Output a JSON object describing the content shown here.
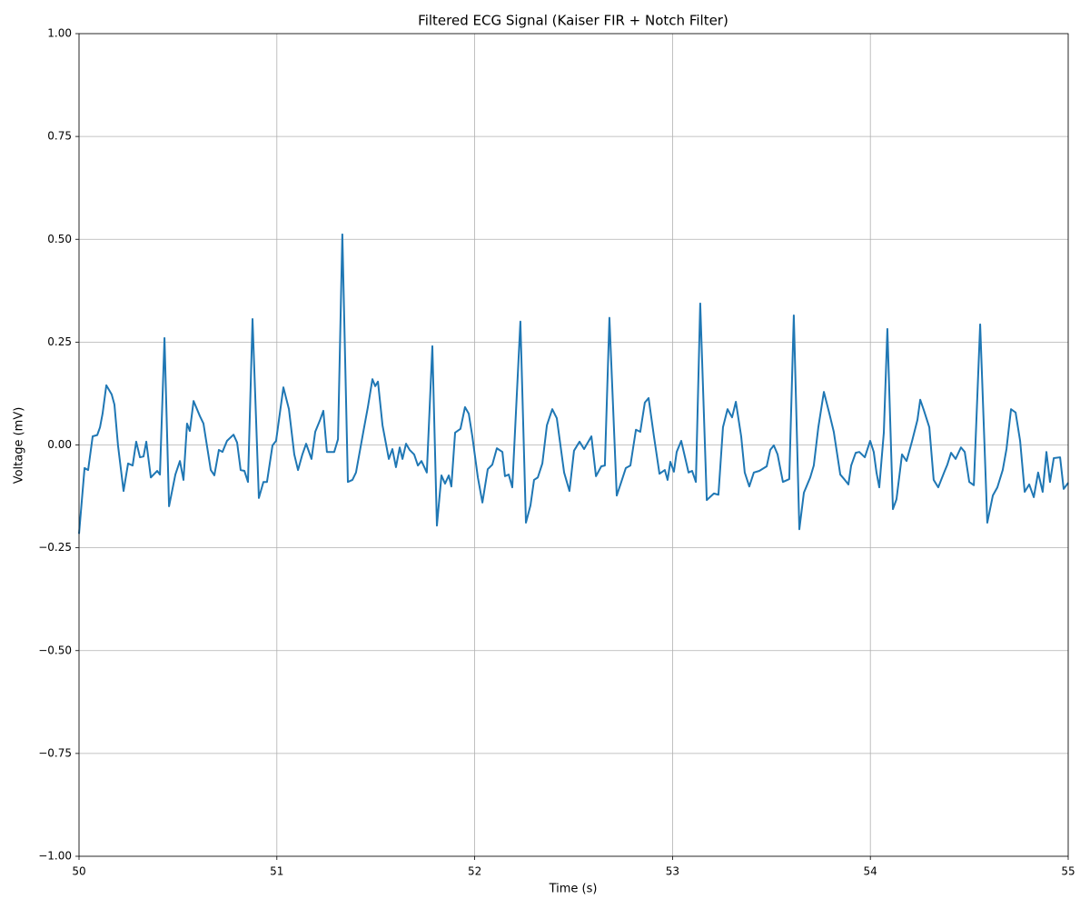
{
  "chart_data": {
    "type": "line",
    "title": "Filtered ECG Signal (Kaiser FIR + Notch Filter)",
    "x_label": "Time (s)",
    "y_label": "Voltage (mV)",
    "color": "#1f77b4",
    "grid": true,
    "xlim": [
      50,
      55
    ],
    "xticks": [
      50,
      51,
      52,
      53,
      54,
      55
    ],
    "ylim": [
      -1,
      1
    ],
    "yticks": [
      {
        "value": -1,
        "label": "−1.00"
      },
      {
        "value": -0.75,
        "label": "−0.75"
      },
      {
        "value": -0.5,
        "label": "−0.50"
      },
      {
        "value": -0.25,
        "label": "−0.25"
      },
      {
        "value": 0,
        "label": "0.00"
      },
      {
        "value": 0.25,
        "label": "0.25"
      },
      {
        "value": 0.5,
        "label": "0.50"
      },
      {
        "value": 0.75,
        "label": "0.75"
      },
      {
        "value": 1,
        "label": "1.00"
      }
    ],
    "x": [
      50.0,
      50.028,
      50.046,
      50.069,
      50.092,
      50.106,
      50.119,
      50.138,
      50.165,
      50.179,
      50.197,
      50.225,
      50.248,
      50.271,
      50.289,
      50.308,
      50.326,
      50.34,
      50.363,
      50.395,
      50.409,
      50.432,
      50.455,
      50.487,
      50.51,
      50.528,
      50.546,
      50.56,
      50.579,
      50.611,
      50.629,
      50.666,
      50.684,
      50.707,
      50.725,
      50.748,
      50.781,
      50.799,
      50.817,
      50.836,
      50.854,
      50.877,
      50.909,
      50.932,
      50.95,
      50.978,
      50.996,
      51.033,
      51.061,
      51.088,
      51.107,
      51.129,
      51.148,
      51.175,
      51.194,
      51.217,
      51.235,
      51.253,
      51.29,
      51.309,
      51.331,
      51.359,
      51.382,
      51.4,
      51.437,
      51.46,
      51.483,
      51.497,
      51.511,
      51.534,
      51.566,
      51.584,
      51.602,
      51.621,
      51.635,
      51.653,
      51.671,
      51.694,
      51.713,
      51.731,
      51.758,
      51.786,
      51.809,
      51.832,
      51.85,
      51.869,
      51.882,
      51.901,
      51.928,
      51.951,
      51.97,
      51.988,
      52.016,
      52.039,
      52.066,
      52.089,
      52.112,
      52.14,
      52.153,
      52.172,
      52.19,
      52.231,
      52.259,
      52.282,
      52.3,
      52.319,
      52.342,
      52.365,
      52.392,
      52.415,
      52.452,
      52.479,
      52.502,
      52.53,
      52.553,
      52.59,
      52.613,
      52.64,
      52.658,
      52.681,
      52.718,
      52.741,
      52.764,
      52.787,
      52.815,
      52.837,
      52.86,
      52.879,
      52.906,
      52.934,
      52.961,
      52.975,
      52.989,
      53.007,
      53.021,
      53.044,
      53.081,
      53.099,
      53.118,
      53.14,
      53.173,
      53.209,
      53.232,
      53.255,
      53.278,
      53.301,
      53.32,
      53.347,
      53.365,
      53.388,
      53.411,
      53.439,
      53.476,
      53.494,
      53.512,
      53.531,
      53.558,
      53.59,
      53.613,
      53.641,
      53.664,
      53.696,
      53.714,
      53.737,
      53.765,
      53.793,
      53.815,
      53.848,
      53.871,
      53.889,
      53.903,
      53.926,
      53.944,
      53.972,
      53.999,
      54.017,
      54.031,
      54.045,
      54.068,
      54.086,
      54.114,
      54.132,
      54.16,
      54.183,
      54.21,
      54.238,
      54.252,
      54.27,
      54.298,
      54.32,
      54.343,
      54.376,
      54.389,
      54.408,
      54.431,
      54.458,
      54.477,
      54.5,
      54.523,
      54.555,
      54.591,
      54.619,
      54.642,
      54.669,
      54.688,
      54.711,
      54.734,
      54.757,
      54.78,
      54.803,
      54.826,
      54.848,
      54.871,
      54.89,
      54.908,
      54.927,
      54.959,
      54.977,
      55.0
    ],
    "values": [
      -0.216,
      -0.056,
      -0.061,
      0.021,
      0.024,
      0.043,
      0.076,
      0.145,
      0.123,
      0.098,
      -0.001,
      -0.112,
      -0.045,
      -0.05,
      0.008,
      -0.03,
      -0.028,
      0.008,
      -0.079,
      -0.063,
      -0.072,
      0.26,
      -0.149,
      -0.072,
      -0.039,
      -0.085,
      0.052,
      0.034,
      0.107,
      0.07,
      0.052,
      -0.061,
      -0.074,
      -0.012,
      -0.017,
      0.01,
      0.025,
      0.006,
      -0.061,
      -0.063,
      -0.09,
      0.306,
      -0.129,
      -0.09,
      -0.09,
      -0.001,
      0.01,
      0.14,
      0.087,
      -0.023,
      -0.061,
      -0.023,
      0.003,
      -0.034,
      0.032,
      0.059,
      0.083,
      -0.017,
      -0.017,
      0.014,
      0.512,
      -0.09,
      -0.085,
      -0.067,
      0.032,
      0.092,
      0.16,
      0.143,
      0.154,
      0.048,
      -0.034,
      -0.01,
      -0.054,
      -0.006,
      -0.034,
      0.003,
      -0.012,
      -0.023,
      -0.05,
      -0.039,
      -0.067,
      0.24,
      -0.196,
      -0.074,
      -0.094,
      -0.074,
      -0.101,
      0.03,
      0.039,
      0.092,
      0.076,
      0.021,
      -0.079,
      -0.14,
      -0.059,
      -0.048,
      -0.008,
      -0.017,
      -0.076,
      -0.072,
      -0.103,
      0.3,
      -0.189,
      -0.147,
      -0.085,
      -0.079,
      -0.045,
      0.048,
      0.087,
      0.065,
      -0.067,
      -0.112,
      -0.014,
      0.008,
      -0.01,
      0.021,
      -0.076,
      -0.052,
      -0.05,
      0.309,
      -0.123,
      -0.09,
      -0.056,
      -0.05,
      0.037,
      0.032,
      0.103,
      0.114,
      0.021,
      -0.07,
      -0.061,
      -0.085,
      -0.041,
      -0.065,
      -0.017,
      0.01,
      -0.067,
      -0.063,
      -0.09,
      0.344,
      -0.134,
      -0.118,
      -0.121,
      0.043,
      0.087,
      0.067,
      0.105,
      0.021,
      -0.067,
      -0.101,
      -0.067,
      -0.063,
      -0.052,
      -0.012,
      -0.001,
      -0.023,
      -0.09,
      -0.083,
      0.315,
      -0.205,
      -0.116,
      -0.079,
      -0.05,
      0.043,
      0.129,
      0.076,
      0.032,
      -0.072,
      -0.085,
      -0.096,
      -0.05,
      -0.019,
      -0.017,
      -0.03,
      0.01,
      -0.017,
      -0.067,
      -0.103,
      0.03,
      0.282,
      -0.156,
      -0.132,
      -0.023,
      -0.039,
      0.008,
      0.061,
      0.11,
      0.085,
      0.043,
      -0.085,
      -0.103,
      -0.063,
      -0.048,
      -0.019,
      -0.034,
      -0.006,
      -0.017,
      -0.09,
      -0.098,
      0.293,
      -0.189,
      -0.123,
      -0.103,
      -0.061,
      -0.01,
      0.087,
      0.079,
      0.01,
      -0.114,
      -0.096,
      -0.127,
      -0.067,
      -0.114,
      -0.017,
      -0.09,
      -0.032,
      -0.03,
      -0.107,
      -0.092
    ]
  }
}
